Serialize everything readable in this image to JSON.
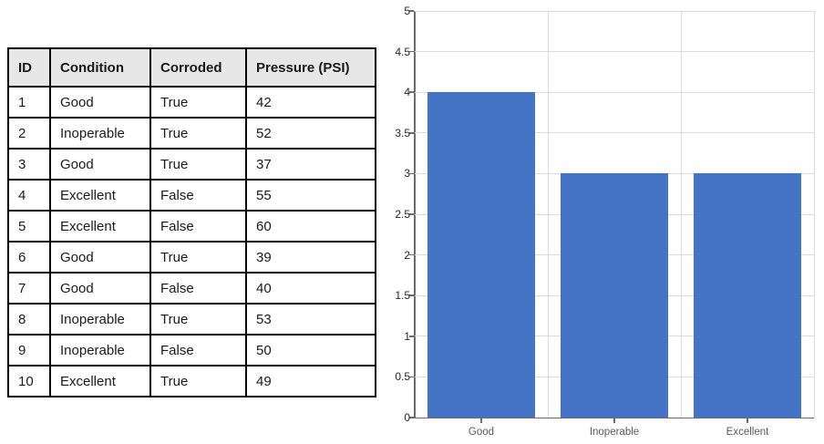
{
  "table": {
    "columns": [
      "ID",
      "Condition",
      "Corroded",
      "Pressure (PSI)"
    ],
    "rows": [
      [
        "1",
        "Good",
        "True",
        "42"
      ],
      [
        "2",
        "Inoperable",
        "True",
        "52"
      ],
      [
        "3",
        "Good",
        "True",
        "37"
      ],
      [
        "4",
        "Excellent",
        "False",
        "55"
      ],
      [
        "5",
        "Excellent",
        "False",
        "60"
      ],
      [
        "6",
        "Good",
        "True",
        "39"
      ],
      [
        "7",
        "Good",
        "False",
        "40"
      ],
      [
        "8",
        "Inoperable",
        "True",
        "53"
      ],
      [
        "9",
        "Inoperable",
        "False",
        "50"
      ],
      [
        "10",
        "Excellent",
        "True",
        "49"
      ]
    ],
    "header_bg": "#e7e7e7",
    "border_color": "#000000"
  },
  "chart_data": {
    "type": "bar",
    "categories": [
      "Good",
      "Inoperable",
      "Excellent"
    ],
    "values": [
      4,
      3,
      3
    ],
    "title": "",
    "xlabel": "",
    "ylabel": "",
    "ylim": [
      0,
      5
    ],
    "ytick_step": 0.5,
    "ytick_labels": [
      "0",
      "0.5",
      "1",
      "1.5",
      "2",
      "2.5",
      "3",
      "3.5",
      "4",
      "4.5",
      "5"
    ],
    "grid": true,
    "legend_position": "none",
    "bar_color": "#4472C4",
    "gridline_color": "#dcdcdc",
    "axis_color": "#6b6b6b",
    "ytick_label_color": "#262626",
    "xtick_label_color": "#595959"
  }
}
